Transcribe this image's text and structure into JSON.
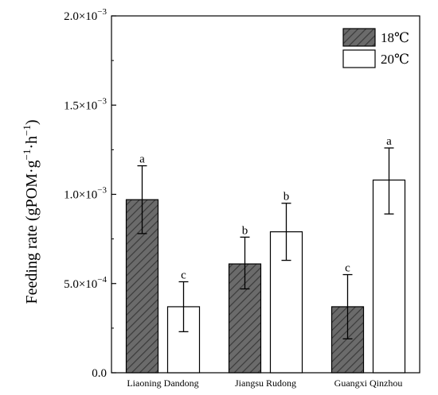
{
  "chart_data": {
    "type": "bar",
    "title": "",
    "xlabel": "",
    "ylabel": {
      "base": "Feeding rate (gPOM·g",
      "sup1": "−1",
      "mid": "·h",
      "sup2": "−1",
      "end": ")"
    },
    "categories": [
      "Liaoning Dandong",
      "Jiangsu Rudong",
      "Guangxi Qinzhou"
    ],
    "ylim": [
      0,
      0.002
    ],
    "yticks": [
      {
        "value": 0,
        "label": "0.0"
      },
      {
        "value": 0.0005,
        "mant": "5.0×10",
        "exp": "−4"
      },
      {
        "value": 0.001,
        "mant": "1.0×10",
        "exp": "−3"
      },
      {
        "value": 0.0015,
        "mant": "1.5×10",
        "exp": "−3"
      },
      {
        "value": 0.002,
        "mant": "2.0×10",
        "exp": "−3"
      }
    ],
    "series": [
      {
        "name": "18℃",
        "fill": "hatch",
        "color": "#666666",
        "values": [
          0.00097,
          0.00061,
          0.00037
        ],
        "errors": [
          [
            0.00078,
            0.00116
          ],
          [
            0.00047,
            0.00076
          ],
          [
            0.00019,
            0.00055
          ]
        ],
        "letters": [
          "a",
          "b",
          "c"
        ]
      },
      {
        "name": "20℃",
        "fill": "white",
        "color": "#ffffff",
        "values": [
          0.00037,
          0.00079,
          0.00108
        ],
        "errors": [
          [
            0.00023,
            0.00051
          ],
          [
            0.00063,
            0.00095
          ],
          [
            0.00089,
            0.00126
          ]
        ],
        "letters": [
          "c",
          "b",
          "a"
        ]
      }
    ],
    "legend_position": "top-right",
    "grid": false
  }
}
